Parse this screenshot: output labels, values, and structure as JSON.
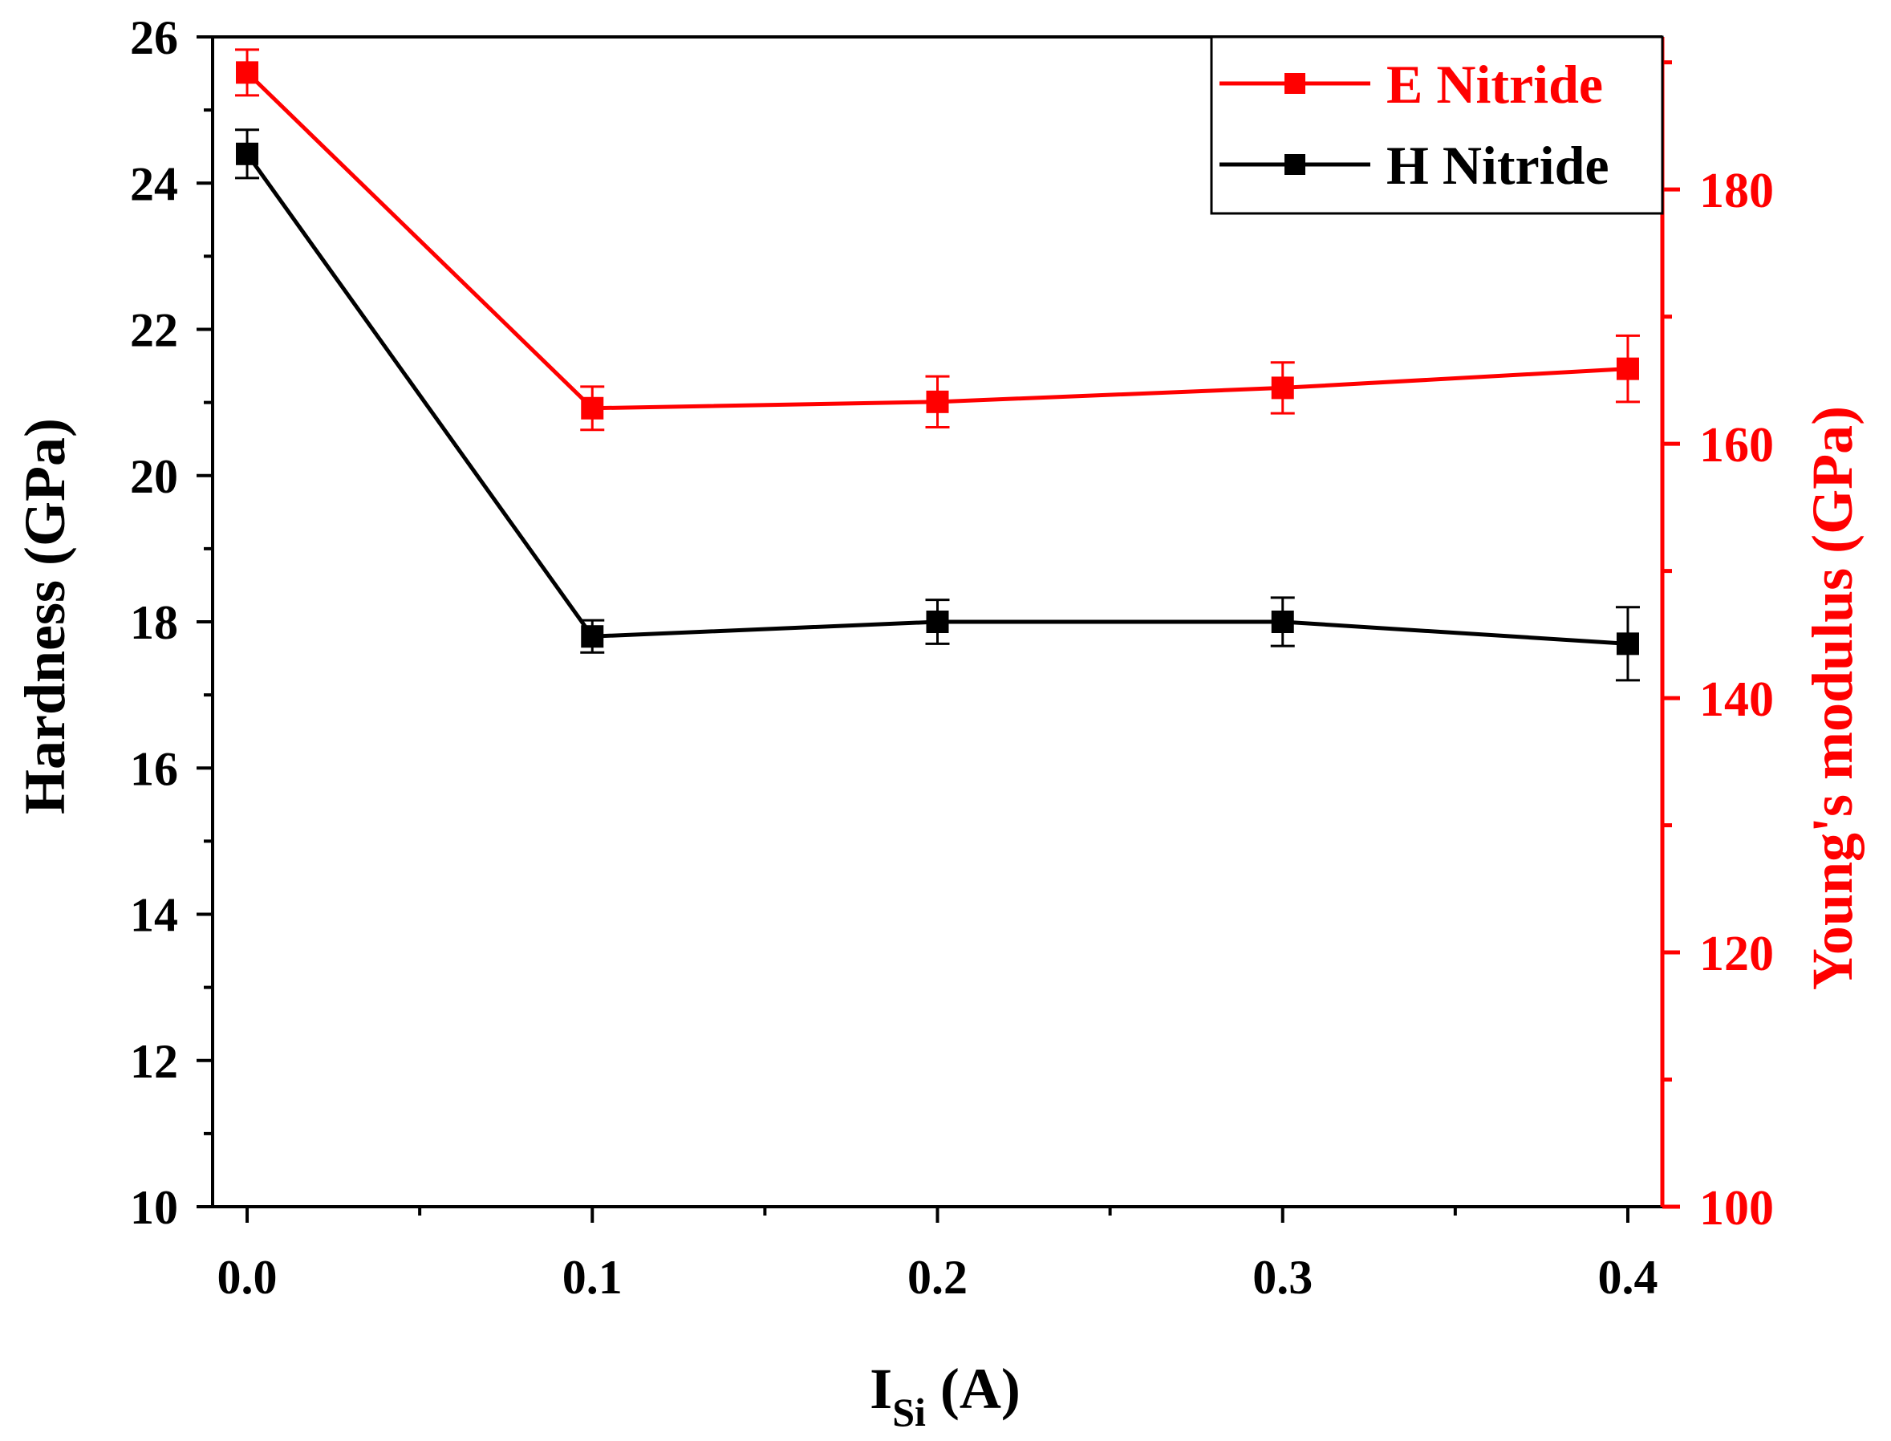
{
  "chart_data": {
    "type": "line",
    "title": "",
    "x": [
      0.0,
      0.1,
      0.2,
      0.3,
      0.4
    ],
    "xlabel_main": "I",
    "xlabel_sub": "Si",
    "xlabel_unit": " (A)",
    "xlim": [
      -0.01,
      0.41
    ],
    "xticks": [
      0.0,
      0.1,
      0.2,
      0.3,
      0.4
    ],
    "xtick_labels": [
      "0.0",
      "0.1",
      "0.2",
      "0.3",
      "0.4"
    ],
    "ylabel_left": "Hardness (GPa)",
    "ylim_left": [
      10,
      26
    ],
    "yticks_left": [
      10,
      12,
      14,
      16,
      18,
      20,
      22,
      24,
      26
    ],
    "ytick_labels_left": [
      "10",
      "12",
      "14",
      "16",
      "18",
      "20",
      "22",
      "24",
      "26"
    ],
    "ylabel_right": "Young's modulus (GPa)",
    "ylim_right": [
      100,
      192
    ],
    "yticks_right": [
      100,
      120,
      140,
      160,
      180
    ],
    "ytick_labels_right": [
      "100",
      "120",
      "140",
      "160",
      "180"
    ],
    "grid": false,
    "legend_position": "top-right",
    "series": [
      {
        "name": "E Nitride",
        "axis": "right",
        "color": "#ff0000",
        "values": [
          189.2,
          162.8,
          163.3,
          164.4,
          165.9
        ],
        "errors": [
          1.8,
          1.7,
          2.0,
          2.0,
          2.6
        ]
      },
      {
        "name": "H Nitride",
        "axis": "left",
        "color": "#000000",
        "values": [
          24.4,
          17.8,
          18.0,
          18.0,
          17.7
        ],
        "errors": [
          0.33,
          0.22,
          0.3,
          0.33,
          0.5
        ]
      }
    ],
    "legend_order": [
      0,
      1
    ]
  }
}
